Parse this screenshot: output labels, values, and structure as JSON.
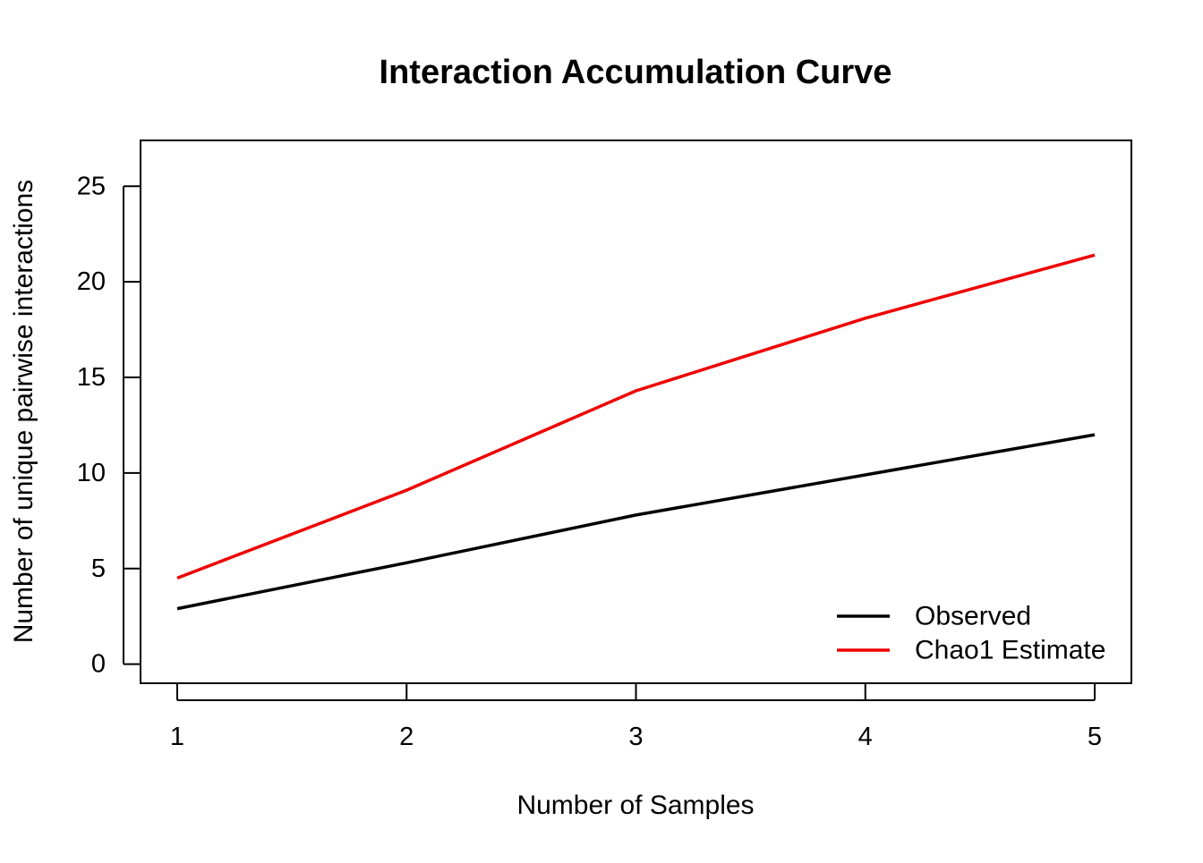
{
  "chart_data": {
    "type": "line",
    "title": "Interaction Accumulation Curve",
    "xlabel": "Number of Samples",
    "ylabel": "Number of unique pairwise interactions",
    "x": [
      1,
      2,
      3,
      4,
      5
    ],
    "xticks": [
      1,
      2,
      3,
      4,
      5
    ],
    "yticks": [
      0,
      5,
      10,
      15,
      20,
      25
    ],
    "xlim": [
      0.84,
      5.16
    ],
    "ylim": [
      -1,
      27.4
    ],
    "grid": false,
    "legend_position": "bottom-right",
    "series": [
      {
        "name": "Observed",
        "color": "#000000",
        "values": [
          2.9,
          5.3,
          7.8,
          9.9,
          12.0
        ]
      },
      {
        "name": "Chao1 Estimate",
        "color": "#ee0000",
        "values": [
          4.5,
          9.1,
          14.3,
          18.1,
          21.4
        ]
      }
    ]
  }
}
